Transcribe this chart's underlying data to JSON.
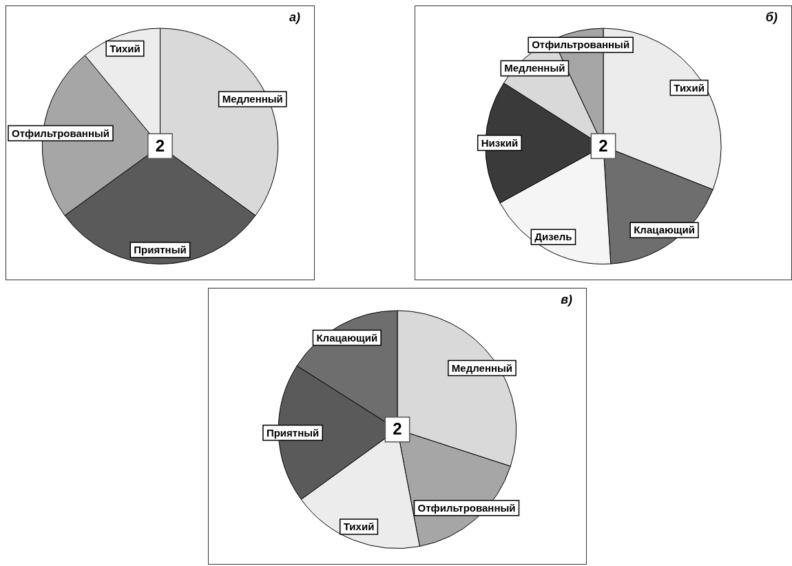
{
  "chart_data": [
    {
      "type": "pie",
      "title": "а)",
      "categories": [
        "Медленный",
        "Приятный",
        "Отфильтрованный",
        "Тихий"
      ],
      "values": [
        35,
        30,
        24,
        11
      ],
      "colors": [
        "#d9d9d9",
        "#5a5a5a",
        "#a6a6a6",
        "#ececec"
      ],
      "annotations": [
        "2"
      ]
    },
    {
      "type": "pie",
      "title": "б)",
      "categories": [
        "Тихий",
        "Клацающий",
        "Дизель",
        "Низкий",
        "Медленный",
        "Отфильтрованный"
      ],
      "values": [
        31,
        18,
        18,
        17,
        9,
        7
      ],
      "colors": [
        "#ececec",
        "#6e6e6e",
        "#f5f5f5",
        "#3a3a3a",
        "#d9d9d9",
        "#a6a6a6"
      ],
      "annotations": [
        "2"
      ]
    },
    {
      "type": "pie",
      "title": "в)",
      "categories": [
        "Медленный",
        "Отфильтрованный",
        "Тихий",
        "Приятный",
        "Клацающий"
      ],
      "values": [
        30,
        17,
        18,
        19,
        16
      ],
      "colors": [
        "#d9d9d9",
        "#a6a6a6",
        "#ececec",
        "#5a5a5a",
        "#6e6e6e"
      ],
      "annotations": [
        "2"
      ]
    }
  ]
}
